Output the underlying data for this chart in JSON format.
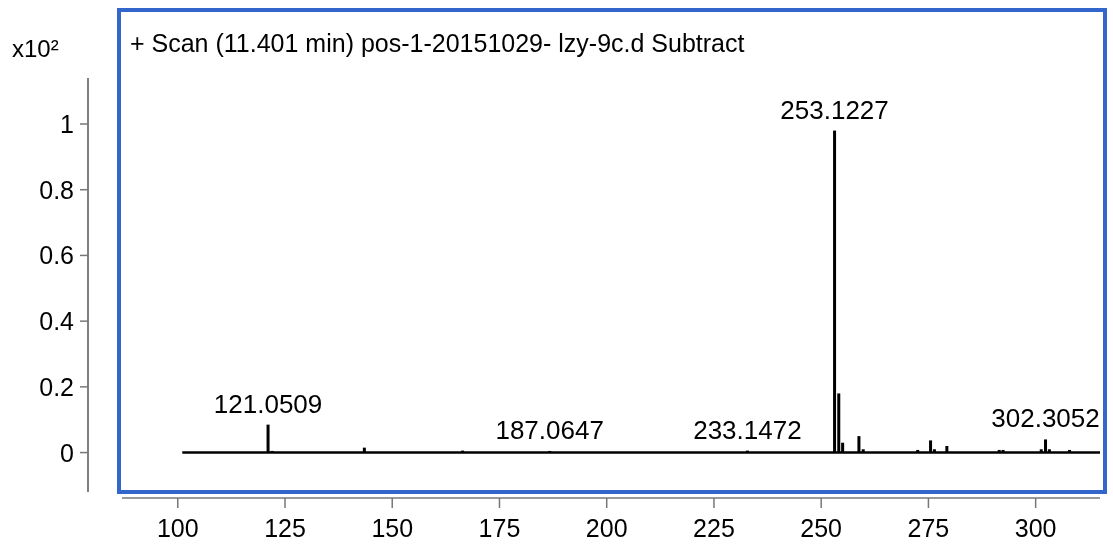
{
  "chart_data": {
    "type": "bar",
    "title": "+ Scan (11.401 min) pos-1-20151029- lzy-9c.d  Subtract",
    "ylabel": "x10²",
    "x": [
      121.05,
      122.0,
      143.5,
      166.4,
      186.7,
      232.8,
      253.12,
      254.1,
      255.0,
      258.8,
      259.8,
      272.5,
      275.5,
      276.4,
      279.3,
      291.5,
      292.4,
      301.3,
      302.3,
      303.2,
      307.9
    ],
    "values": [
      0.085,
      0.005,
      0.015,
      0.006,
      0.005,
      0.006,
      0.98,
      0.18,
      0.03,
      0.05,
      0.01,
      0.008,
      0.037,
      0.01,
      0.02,
      0.008,
      0.008,
      0.01,
      0.04,
      0.01,
      0.008
    ],
    "color": "#000000",
    "annotations": [
      {
        "text": "121.0509",
        "x": 121.05,
        "y": 0.085
      },
      {
        "text": "187.0647",
        "x": 186.7,
        "y": 0.005
      },
      {
        "text": "233.1472",
        "x": 232.8,
        "y": 0.006
      },
      {
        "text": "253.1227",
        "x": 253.12,
        "y": 0.98
      },
      {
        "text": "302.3052",
        "x": 302.3,
        "y": 0.04
      }
    ],
    "xlim": [
      87,
      315
    ],
    "ylim": [
      -0.12,
      1.14
    ],
    "xticks": [
      100,
      125,
      150,
      175,
      200,
      225,
      250,
      275,
      300
    ],
    "yticks": [
      0,
      0.2,
      0.4,
      0.6,
      0.8,
      1
    ]
  }
}
